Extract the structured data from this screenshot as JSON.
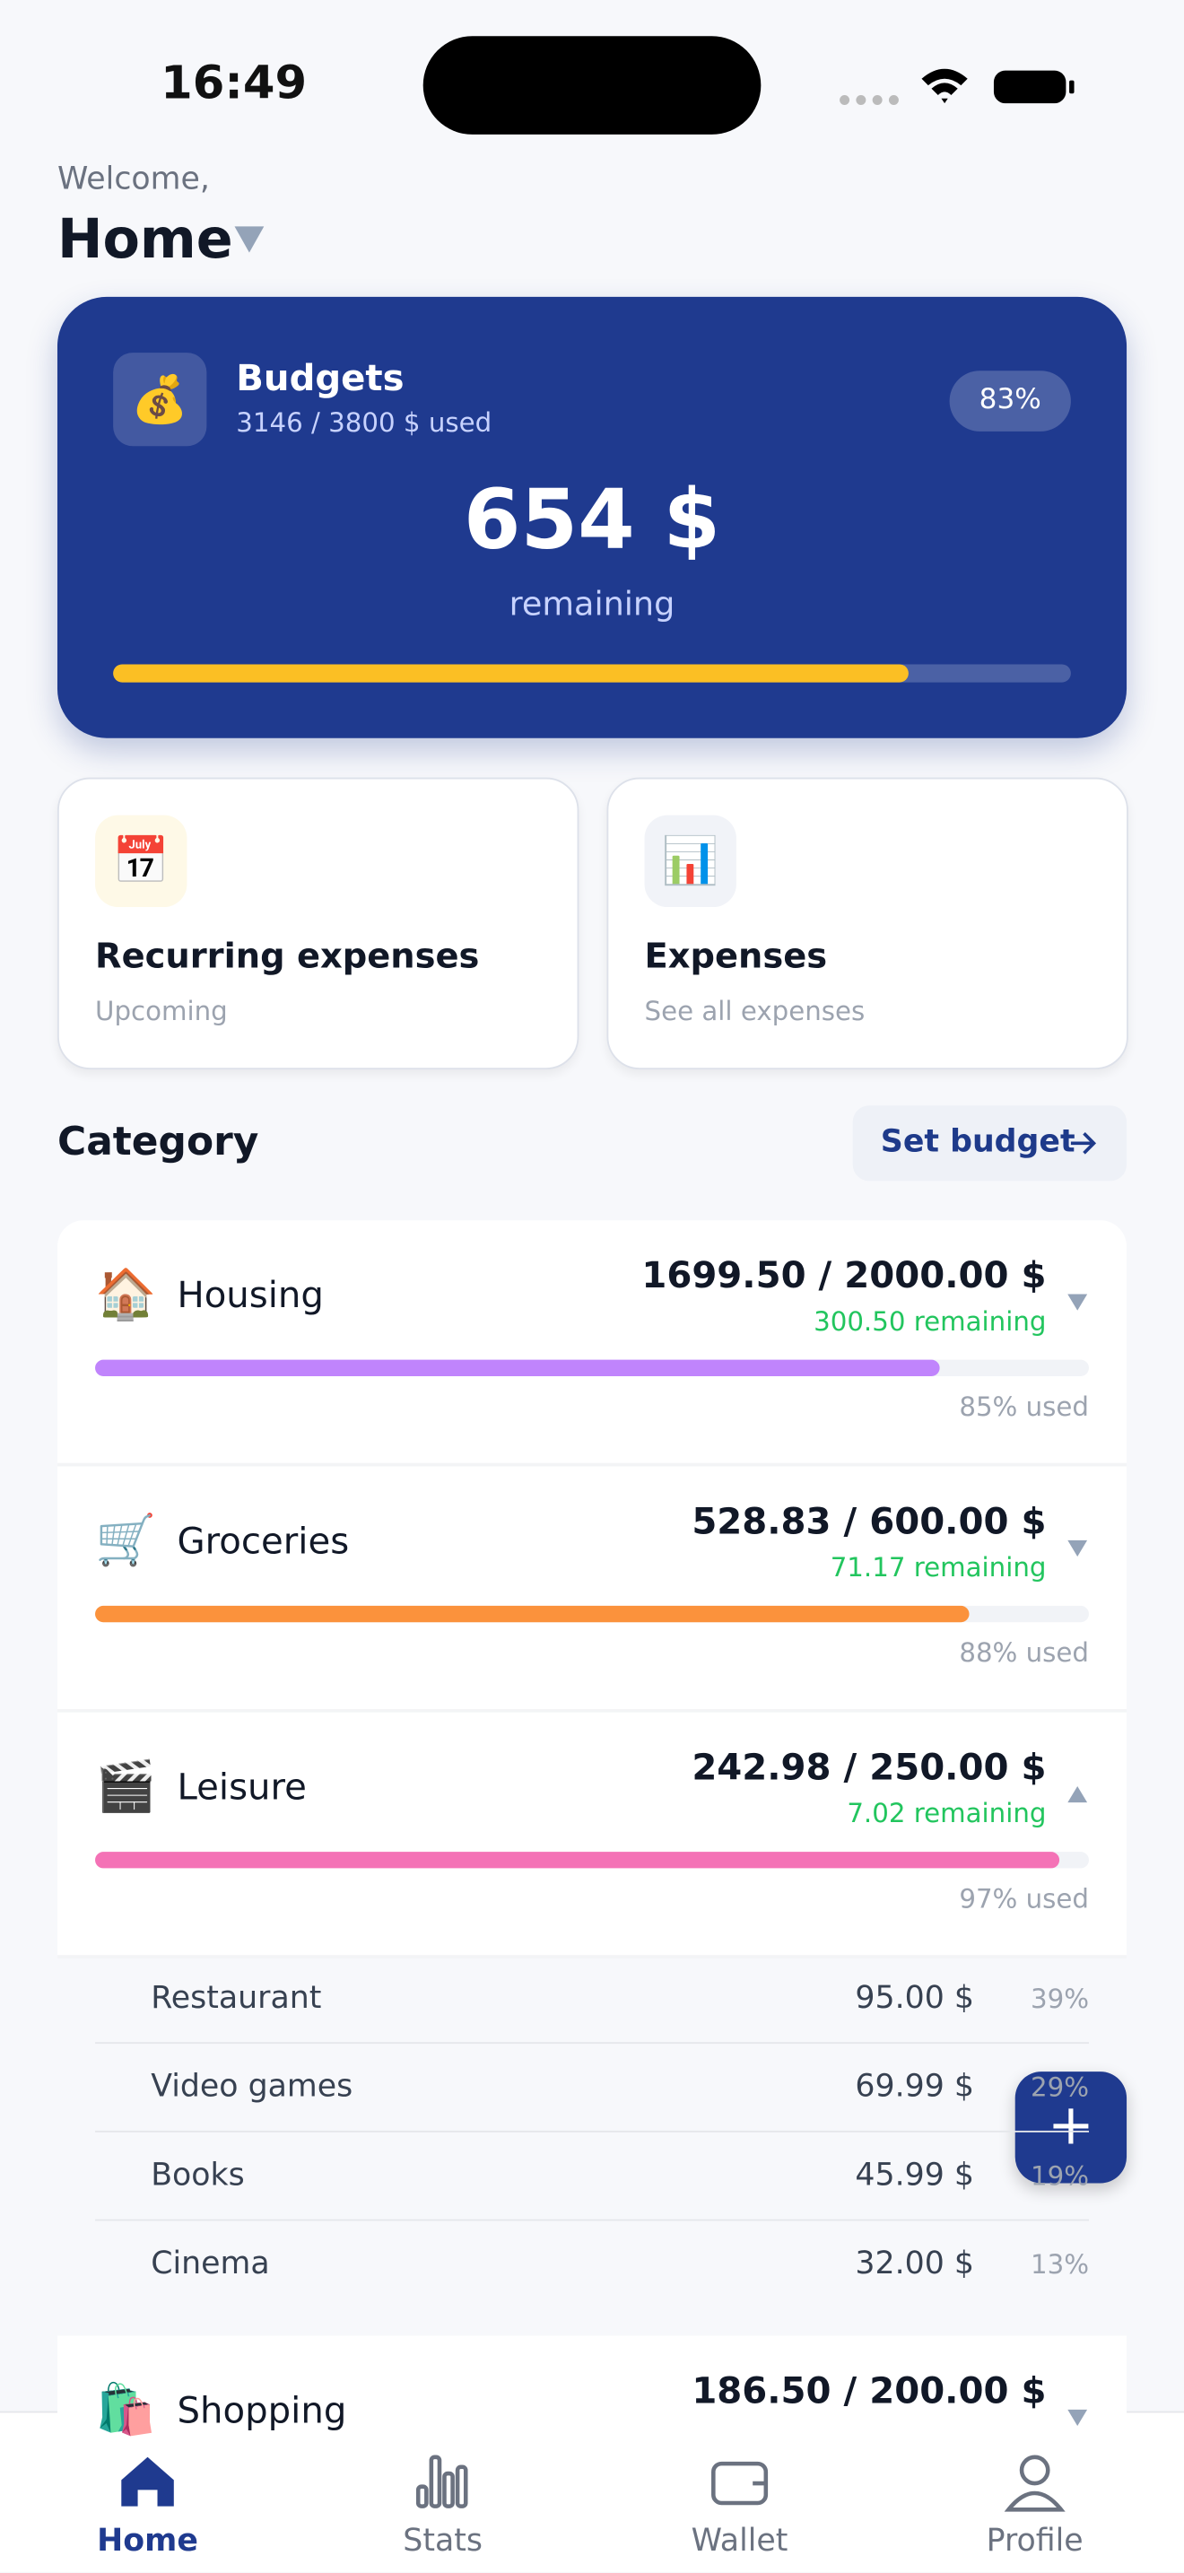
{
  "status": {
    "time": "16:49"
  },
  "header": {
    "welcome": "Welcome,",
    "title": "Home"
  },
  "budget_card": {
    "title": "Budgets",
    "used": "3146 / 3800 $ used",
    "percent": "83%",
    "remaining_amount": "654 $",
    "remaining_label": "remaining"
  },
  "quick_cards": [
    {
      "title": "Recurring expenses",
      "subtitle": "Upcoming"
    },
    {
      "title": "Expenses",
      "subtitle": "See all expenses"
    }
  ],
  "category_section": {
    "title": "Category",
    "button": "Set budget"
  },
  "categories": [
    {
      "name": "Housing",
      "amount": "1699.50 / 2000.00 $",
      "remaining": "300.50 remaining",
      "used": "85% used",
      "color": "#c084fc",
      "expanded": false
    },
    {
      "name": "Groceries",
      "amount": "528.83 / 600.00 $",
      "remaining": "71.17 remaining",
      "used": "88% used",
      "color": "#fb923c",
      "expanded": false
    },
    {
      "name": "Leisure",
      "amount": "242.98 / 250.00 $",
      "remaining": "7.02 remaining",
      "used": "97% used",
      "color": "#f472b6",
      "expanded": true,
      "items": [
        {
          "name": "Restaurant",
          "amount": "95.00 $",
          "percent": "39%"
        },
        {
          "name": "Video games",
          "amount": "69.99 $",
          "percent": "29%"
        },
        {
          "name": "Books",
          "amount": "45.99 $",
          "percent": "19%"
        },
        {
          "name": "Cinema",
          "amount": "32.00 $",
          "percent": "13%"
        }
      ]
    },
    {
      "name": "Shopping",
      "amount": "186.50 / 200.00 $",
      "color": "#60a5fa",
      "expanded": false
    }
  ],
  "nav": [
    {
      "label": "Home",
      "active": true
    },
    {
      "label": "Stats",
      "active": false
    },
    {
      "label": "Wallet",
      "active": false
    },
    {
      "label": "Profile",
      "active": false
    }
  ]
}
